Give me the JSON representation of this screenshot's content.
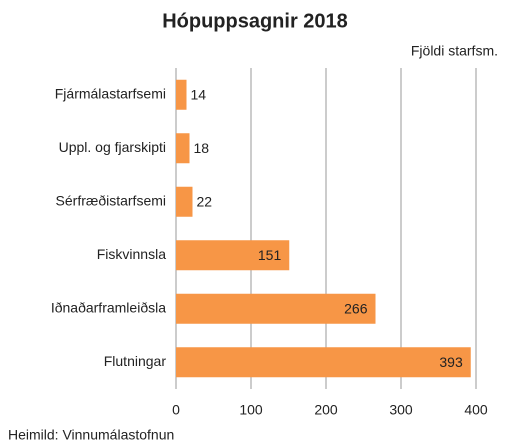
{
  "chart_data": {
    "type": "bar",
    "orientation": "horizontal",
    "title": "Hópuppsagnir 2018",
    "x_label": "Fjöldi starfsm.",
    "source": "Heimild: Vinnumálastofnun",
    "categories": [
      "Fjármálastarfsemi",
      "Uppl. og fjarskipti",
      "Sérfræðistarfsemi",
      "Fiskvinnsla",
      "Iðnaðarframleiðsla",
      "Flutningar"
    ],
    "values": [
      14,
      18,
      22,
      151,
      266,
      393
    ],
    "color": "#f79646",
    "xlim": [
      0,
      400
    ],
    "xticks": [
      0,
      100,
      200,
      300,
      400
    ],
    "grid": true
  }
}
